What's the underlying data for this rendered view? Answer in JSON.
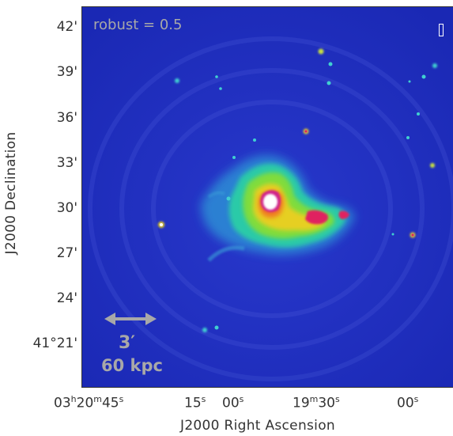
{
  "figure": {
    "annotations": {
      "robust_label": "robust = 0.5",
      "scale_angular": "3′",
      "scale_physical": "60 kpc"
    },
    "x_axis": {
      "title": "J2000 Right Ascension",
      "ticks": [
        {
          "h": "03",
          "h_unit": "h",
          "m": "20",
          "m_unit": "m",
          "s": "45",
          "s_unit": "s"
        },
        {
          "s": "15",
          "s_unit": "s"
        },
        {
          "s": "00",
          "s_unit": "s"
        },
        {
          "m": "19",
          "m_unit": "m",
          "s": "30",
          "s_unit": "s"
        },
        {
          "s": "00",
          "s_unit": "s"
        }
      ]
    },
    "y_axis": {
      "title": "J2000 Declination",
      "ticks": [
        "42'",
        "39'",
        "36'",
        "33'",
        "30'",
        "27'",
        "24'",
        "41°21'"
      ]
    },
    "colors": {
      "background": "#1f2fbf",
      "emission_low": "#26c0b0",
      "emission_mid": "#7ddc3a",
      "emission_high": "#e8d020",
      "emission_peak": "#e02060",
      "core": "#ffffff",
      "overlay_text": "#a8a8a8"
    }
  }
}
